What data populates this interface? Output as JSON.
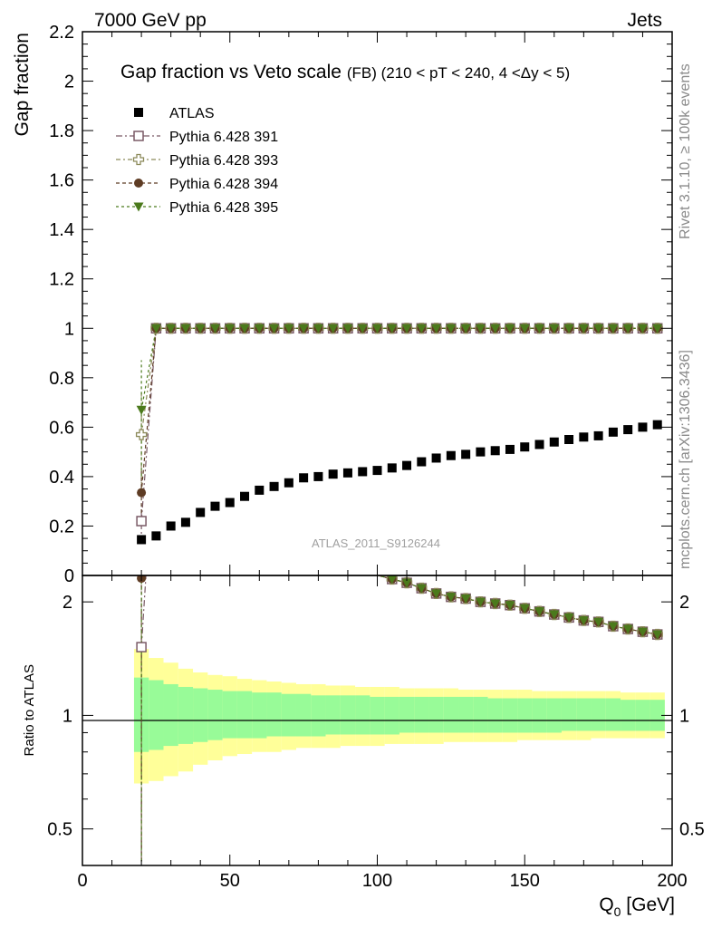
{
  "header": {
    "left": "7000 GeV pp",
    "right": "Jets"
  },
  "side_labels": {
    "rivet": "Rivet 3.1.10, ≥ 100k events",
    "mcplots": "mcplots.cern.ch [arXiv:1306.3436]"
  },
  "chart_data": {
    "type": "scatter",
    "title": "Gap fraction vs Veto scale",
    "subtitle": "(FB) (210 < pT < 240, 4 <Δy < 5)",
    "watermark": "ATLAS_2011_S9126244",
    "xlabel": "Q",
    "xlabel_sub": "0",
    "xlabel_unit": " [GeV]",
    "ylabel": "Gap fraction",
    "ratio_ylabel": "Ratio to ATLAS",
    "xlim": [
      0,
      200
    ],
    "ylim": [
      0,
      2.2
    ],
    "ratio_ylim": [
      0.4,
      2.35
    ],
    "ratio_scale": "log",
    "x_ticks": [
      "0",
      "50",
      "100",
      "150",
      "200"
    ],
    "y_ticks": [
      "0.2",
      "0.4",
      "0.6",
      "0.8",
      "1",
      "1.2",
      "1.4",
      "1.6",
      "1.8",
      "2",
      "2.2"
    ],
    "y_tick_zero": "0",
    "ratio_ticks": [
      "0.5",
      "1",
      "2"
    ],
    "legend_position": "top-left",
    "data": {
      "name": "ATLAS",
      "x": [
        20,
        25,
        30,
        35,
        40,
        45,
        50,
        55,
        60,
        65,
        70,
        75,
        80,
        85,
        90,
        95,
        100,
        105,
        110,
        115,
        120,
        125,
        130,
        135,
        140,
        145,
        150,
        155,
        160,
        165,
        170,
        175,
        180,
        185,
        190,
        195
      ],
      "y": [
        0.145,
        0.16,
        0.2,
        0.215,
        0.255,
        0.28,
        0.295,
        0.32,
        0.345,
        0.36,
        0.375,
        0.395,
        0.4,
        0.41,
        0.415,
        0.42,
        0.425,
        0.435,
        0.445,
        0.46,
        0.475,
        0.485,
        0.49,
        0.5,
        0.505,
        0.51,
        0.52,
        0.53,
        0.54,
        0.55,
        0.56,
        0.565,
        0.58,
        0.59,
        0.6,
        0.61
      ]
    },
    "band_inner": {
      "x_edges": [
        17.5,
        22.5,
        27.5,
        32.5,
        37.5,
        42.5,
        47.5,
        52.5,
        57.5,
        62.5,
        67.5,
        72.5,
        77.5,
        82.5,
        87.5,
        92.5,
        97.5,
        102.5,
        107.5,
        112.5,
        117.5,
        122.5,
        127.5,
        132.5,
        137.5,
        142.5,
        147.5,
        152.5,
        157.5,
        162.5,
        167.5,
        172.5,
        177.5,
        182.5,
        187.5,
        192.5,
        197.5
      ],
      "up": [
        1.26,
        1.24,
        1.21,
        1.19,
        1.18,
        1.17,
        1.16,
        1.16,
        1.15,
        1.15,
        1.14,
        1.14,
        1.13,
        1.13,
        1.13,
        1.13,
        1.12,
        1.12,
        1.12,
        1.12,
        1.12,
        1.12,
        1.12,
        1.12,
        1.11,
        1.11,
        1.11,
        1.11,
        1.11,
        1.11,
        1.11,
        1.11,
        1.11,
        1.1,
        1.1,
        1.1
      ],
      "down": [
        0.8,
        0.81,
        0.83,
        0.84,
        0.85,
        0.86,
        0.87,
        0.87,
        0.87,
        0.88,
        0.88,
        0.88,
        0.88,
        0.89,
        0.89,
        0.89,
        0.89,
        0.89,
        0.9,
        0.9,
        0.9,
        0.9,
        0.9,
        0.9,
        0.9,
        0.9,
        0.9,
        0.9,
        0.9,
        0.91,
        0.91,
        0.91,
        0.91,
        0.91,
        0.91,
        0.91
      ]
    },
    "band_outer": {
      "up": [
        1.5,
        1.42,
        1.38,
        1.33,
        1.3,
        1.28,
        1.27,
        1.25,
        1.24,
        1.23,
        1.22,
        1.21,
        1.21,
        1.2,
        1.2,
        1.19,
        1.19,
        1.19,
        1.18,
        1.18,
        1.18,
        1.18,
        1.17,
        1.17,
        1.17,
        1.17,
        1.17,
        1.16,
        1.16,
        1.16,
        1.16,
        1.16,
        1.16,
        1.15,
        1.15,
        1.15
      ],
      "down": [
        0.66,
        0.67,
        0.69,
        0.71,
        0.74,
        0.76,
        0.78,
        0.79,
        0.8,
        0.8,
        0.81,
        0.82,
        0.82,
        0.82,
        0.83,
        0.83,
        0.83,
        0.84,
        0.84,
        0.84,
        0.84,
        0.85,
        0.85,
        0.85,
        0.85,
        0.85,
        0.86,
        0.86,
        0.86,
        0.86,
        0.86,
        0.87,
        0.87,
        0.87,
        0.87,
        0.87
      ]
    },
    "series": [
      {
        "name": "Pythia 6.428 391",
        "color": "#7a5a66",
        "marker": "open-square",
        "x": [
          20,
          25,
          30,
          35,
          40,
          45,
          50,
          55,
          60,
          65,
          70,
          75,
          80,
          85,
          90,
          95,
          100,
          105,
          110,
          115,
          120,
          125,
          130,
          135,
          140,
          145,
          150,
          155,
          160,
          165,
          170,
          175,
          180,
          185,
          190,
          195
        ],
        "y": [
          0.22,
          1,
          1,
          1,
          1,
          1,
          1,
          1,
          1,
          1,
          1,
          1,
          1,
          1,
          1,
          1,
          1,
          1,
          1,
          1,
          1,
          1,
          1,
          1,
          1,
          1,
          1,
          1,
          1,
          1,
          1,
          1,
          1,
          1,
          1,
          1
        ]
      },
      {
        "name": "Pythia 6.428 393",
        "color": "#8c8a5a",
        "marker": "open-cross",
        "x": [
          20,
          25,
          30,
          35,
          40,
          45,
          50,
          55,
          60,
          65,
          70,
          75,
          80,
          85,
          90,
          95,
          100,
          105,
          110,
          115,
          120,
          125,
          130,
          135,
          140,
          145,
          150,
          155,
          160,
          165,
          170,
          175,
          180,
          185,
          190,
          195
        ],
        "y": [
          0.57,
          1,
          1,
          1,
          1,
          1,
          1,
          1,
          1,
          1,
          1,
          1,
          1,
          1,
          1,
          1,
          1,
          1,
          1,
          1,
          1,
          1,
          1,
          1,
          1,
          1,
          1,
          1,
          1,
          1,
          1,
          1,
          1,
          1,
          1,
          1
        ]
      },
      {
        "name": "Pythia 6.428 394",
        "color": "#5e3c24",
        "marker": "circle",
        "x": [
          20,
          25,
          30,
          35,
          40,
          45,
          50,
          55,
          60,
          65,
          70,
          75,
          80,
          85,
          90,
          95,
          100,
          105,
          110,
          115,
          120,
          125,
          130,
          135,
          140,
          145,
          150,
          155,
          160,
          165,
          170,
          175,
          180,
          185,
          190,
          195
        ],
        "y": [
          0.335,
          1,
          1,
          1,
          1,
          1,
          1,
          1,
          1,
          1,
          1,
          1,
          1,
          1,
          1,
          1,
          1,
          1,
          1,
          1,
          1,
          1,
          1,
          1,
          1,
          1,
          1,
          1,
          1,
          1,
          1,
          1,
          1,
          1,
          1,
          1
        ]
      },
      {
        "name": "Pythia 6.428 395",
        "color": "#4b7a1c",
        "marker": "triangle-down",
        "x": [
          20,
          25,
          30,
          35,
          40,
          45,
          50,
          55,
          60,
          65,
          70,
          75,
          80,
          85,
          90,
          95,
          100,
          105,
          110,
          115,
          120,
          125,
          130,
          135,
          140,
          145,
          150,
          155,
          160,
          165,
          170,
          175,
          180,
          185,
          190,
          195
        ],
        "y": [
          0.67,
          1,
          1,
          1,
          1,
          1,
          1,
          1,
          1,
          1,
          1,
          1,
          1,
          1,
          1,
          1,
          1,
          1,
          1,
          1,
          1,
          1,
          1,
          1,
          1,
          1,
          1,
          1,
          1,
          1,
          1,
          1,
          1,
          1,
          1,
          1
        ]
      }
    ]
  },
  "colors": {
    "band_inner": "#98fb98",
    "band_outer": "#ffff99",
    "data": "#000000"
  }
}
